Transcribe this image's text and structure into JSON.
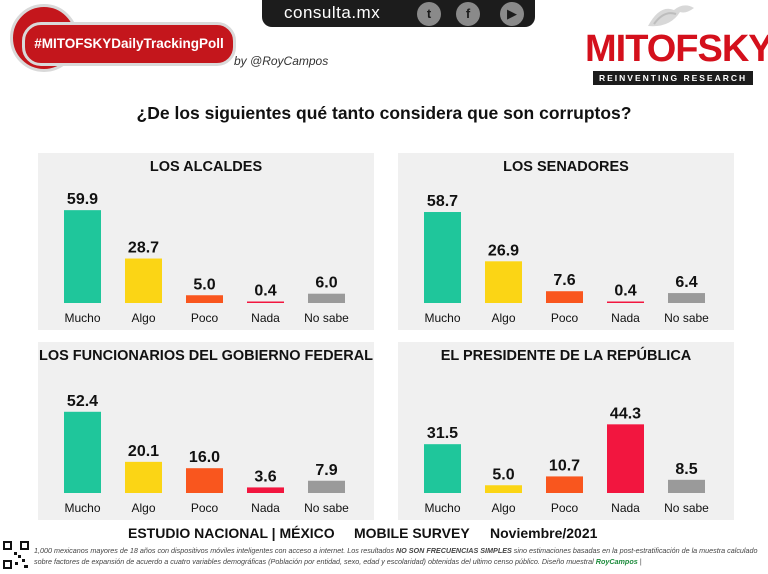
{
  "header": {
    "site": "consulta.mx",
    "social_icons": [
      "twitter-icon",
      "facebook-icon",
      "youtube-icon"
    ],
    "badge": "#MITOFSKYDailyTrackingPoll",
    "byline": "by @RoyCampos",
    "brand_name": "MITOFSKY",
    "brand_tagline": "REINVENTING RESEARCH",
    "brand_color": "#d4101c",
    "badge_color": "#c4161c"
  },
  "question": "¿De los siguientes qué tanto considera que son corruptos?",
  "colors": {
    "Mucho": "#1fc69b",
    "Algo": "#fbd515",
    "Poco": "#f9561e",
    "Nada": "#f2163f",
    "No sabe": "#9a9a9a"
  },
  "chart_data": [
    {
      "type": "bar",
      "title": "LOS ALCALDES",
      "categories": [
        "Mucho",
        "Algo",
        "Poco",
        "Nada",
        "No sabe"
      ],
      "values": [
        59.9,
        28.7,
        5.0,
        0.4,
        6.0
      ],
      "labels": [
        "59.9",
        "28.7",
        "5.0",
        "0.4",
        "6.0"
      ],
      "ylim": [
        0,
        60
      ]
    },
    {
      "type": "bar",
      "title": "LOS SENADORES",
      "categories": [
        "Mucho",
        "Algo",
        "Poco",
        "Nada",
        "No sabe"
      ],
      "values": [
        58.7,
        26.9,
        7.6,
        0.4,
        6.4
      ],
      "labels": [
        "58.7",
        "26.9",
        "7.6",
        "0.4",
        "6.4"
      ],
      "ylim": [
        0,
        60
      ]
    },
    {
      "type": "bar",
      "title": "LOS FUNCIONARIOS DEL GOBIERNO FEDERAL",
      "categories": [
        "Mucho",
        "Algo",
        "Poco",
        "Nada",
        "No sabe"
      ],
      "values": [
        52.4,
        20.1,
        16.0,
        3.6,
        7.9
      ],
      "labels": [
        "52.4",
        "20.1",
        "16.0",
        "3.6",
        "7.9"
      ],
      "ylim": [
        0,
        60
      ]
    },
    {
      "type": "bar",
      "title": "EL PRESIDENTE DE LA REPÚBLICA",
      "categories": [
        "Mucho",
        "Algo",
        "Poco",
        "Nada",
        "No sabe"
      ],
      "values": [
        31.5,
        5.0,
        10.7,
        44.3,
        8.5
      ],
      "labels": [
        "31.5",
        "5.0",
        "10.7",
        "44.3",
        "8.5"
      ],
      "ylim": [
        0,
        60
      ]
    }
  ],
  "footer": {
    "study": "ESTUDIO NACIONAL | MÉXICO",
    "mode": "MOBILE SURVEY",
    "date": "Noviembre/2021",
    "note_part1": "1,000 mexicanos mayores de 18 años con dispositivos móviles inteligentes con acceso a internet. Los resultados ",
    "note_bold": "NO SON FRECUENCIAS SIMPLES",
    "note_part2": " sino estimaciones basadas en la post-estratificación de la muestra calculado sobre factores de expansión de acuerdo a cuatro variables demográficas (Población por entidad, sexo, edad y escolaridad) obtenidas del ultimo censo público. Diseño muestral ",
    "note_sign": "RoyCampos",
    "note_end": " |"
  }
}
